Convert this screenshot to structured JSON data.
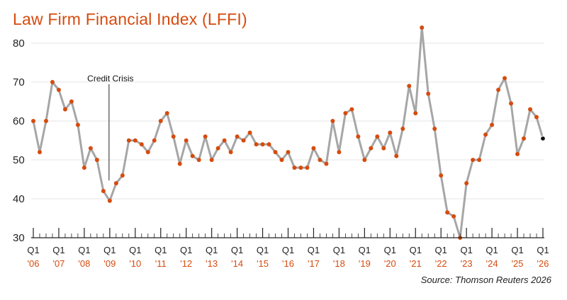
{
  "chart_data": {
    "type": "line",
    "title": "Law Firm Financial Index (LFFI)",
    "source": "Source: Thomson Reuters 2026",
    "ylim": [
      30,
      85
    ],
    "yticks": [
      "30",
      "40",
      "50",
      "60",
      "70",
      "80"
    ],
    "grid": "horizontal",
    "x_quarter_label": "Q1",
    "x_year_labels": [
      "'06",
      "'07",
      "'08",
      "'09",
      "'10",
      "'11",
      "'12",
      "'13",
      "'14",
      "'15",
      "'16",
      "'17",
      "'18",
      "'19",
      "'20",
      "'21",
      "'22",
      "'23",
      "'24",
      "'25",
      "'26"
    ],
    "annotation": {
      "label": "Credit Crisis",
      "x": "Q1 2009"
    },
    "series": [
      {
        "values": [
          60,
          52,
          60,
          70,
          68,
          63,
          65,
          59,
          48,
          53,
          50,
          42,
          39.5,
          44,
          46,
          55,
          55,
          54,
          52,
          55,
          60,
          62,
          56,
          49,
          55,
          51,
          50,
          56,
          50,
          53,
          55,
          52,
          56,
          55,
          57,
          54,
          54,
          54,
          52,
          50,
          52,
          48,
          48,
          48,
          53,
          50,
          49,
          60,
          52,
          62,
          63,
          56,
          50,
          53,
          56,
          53,
          57,
          51,
          58,
          69,
          62,
          84,
          67,
          58,
          46,
          36.5,
          35.5,
          30,
          44,
          50,
          50,
          56.5,
          59,
          68,
          71,
          64.5,
          51.5,
          55.5,
          63,
          61,
          55.5
        ],
        "color": "#a6a6a6",
        "marker_color": "#d64b0e",
        "last_marker_color": "#111111"
      }
    ]
  }
}
